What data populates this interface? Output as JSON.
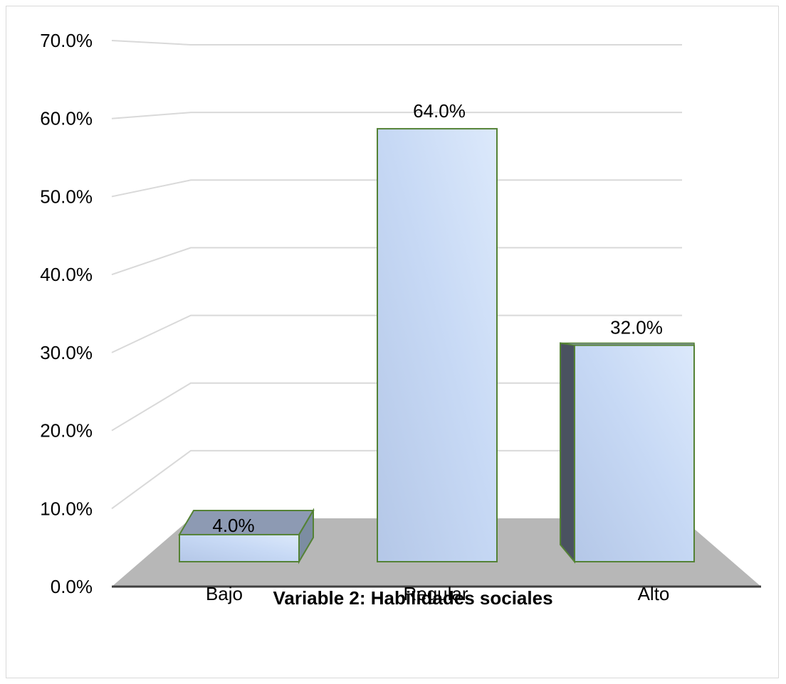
{
  "chart_data": {
    "type": "bar",
    "style": "3d-column",
    "categories": [
      "Bajo",
      "Regular",
      "Alto"
    ],
    "values": [
      4.0,
      64.0,
      32.0
    ],
    "data_labels": [
      "4.0%",
      "64.0%",
      "32.0%"
    ],
    "y_ticks": [
      "0.0%",
      "10.0%",
      "20.0%",
      "30.0%",
      "40.0%",
      "50.0%",
      "60.0%",
      "70.0%"
    ],
    "ylim": [
      0,
      70
    ],
    "xlabel": "Variable 2: Habilidades sociales",
    "ylabel": "",
    "title": "",
    "grid": true,
    "legend": "none",
    "colors": {
      "bar_front": "#c5d5ef",
      "bar_front_light": "#dce9fb",
      "bar_side": "#4a5260",
      "bar_top": "#8d9ab3",
      "bar_outline": "#548235",
      "floor": "#b7b7b7",
      "gridline": "#d9d9d9",
      "axis": "#404040"
    }
  }
}
